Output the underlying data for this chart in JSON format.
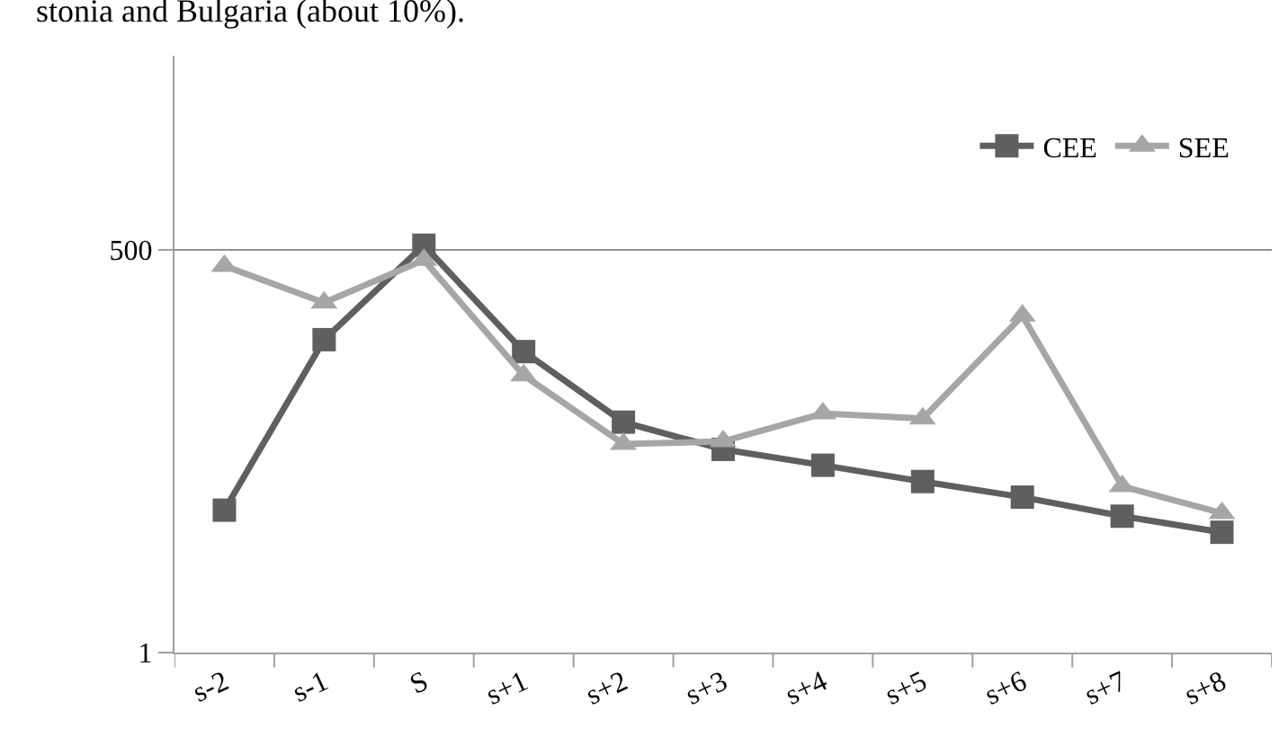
{
  "chart_data": {
    "type": "line",
    "categories": [
      "s-2",
      "s-1",
      "S",
      "s+1",
      "s+2",
      "s+3",
      "s+4",
      "s+5",
      "s+6",
      "s+7",
      "s+8"
    ],
    "series": [
      {
        "name": "CEE",
        "color": "#5f5f5f",
        "marker": "square",
        "values": [
          9,
          125,
          537,
          104,
          35,
          23,
          18,
          14,
          11,
          8.2,
          6.4
        ]
      },
      {
        "name": "SEE",
        "color": "#a6a6a6",
        "marker": "triangle",
        "values": [
          390,
          221,
          427,
          72,
          25,
          26,
          40,
          37,
          181,
          13,
          8.6
        ]
      }
    ],
    "log": "y",
    "ylim": [
      1,
      10000
    ],
    "yticks": [
      1,
      500
    ],
    "grid": "y",
    "legend": "top right",
    "annotations": [
      "stonia and Bulgaria (about 10%)."
    ]
  }
}
